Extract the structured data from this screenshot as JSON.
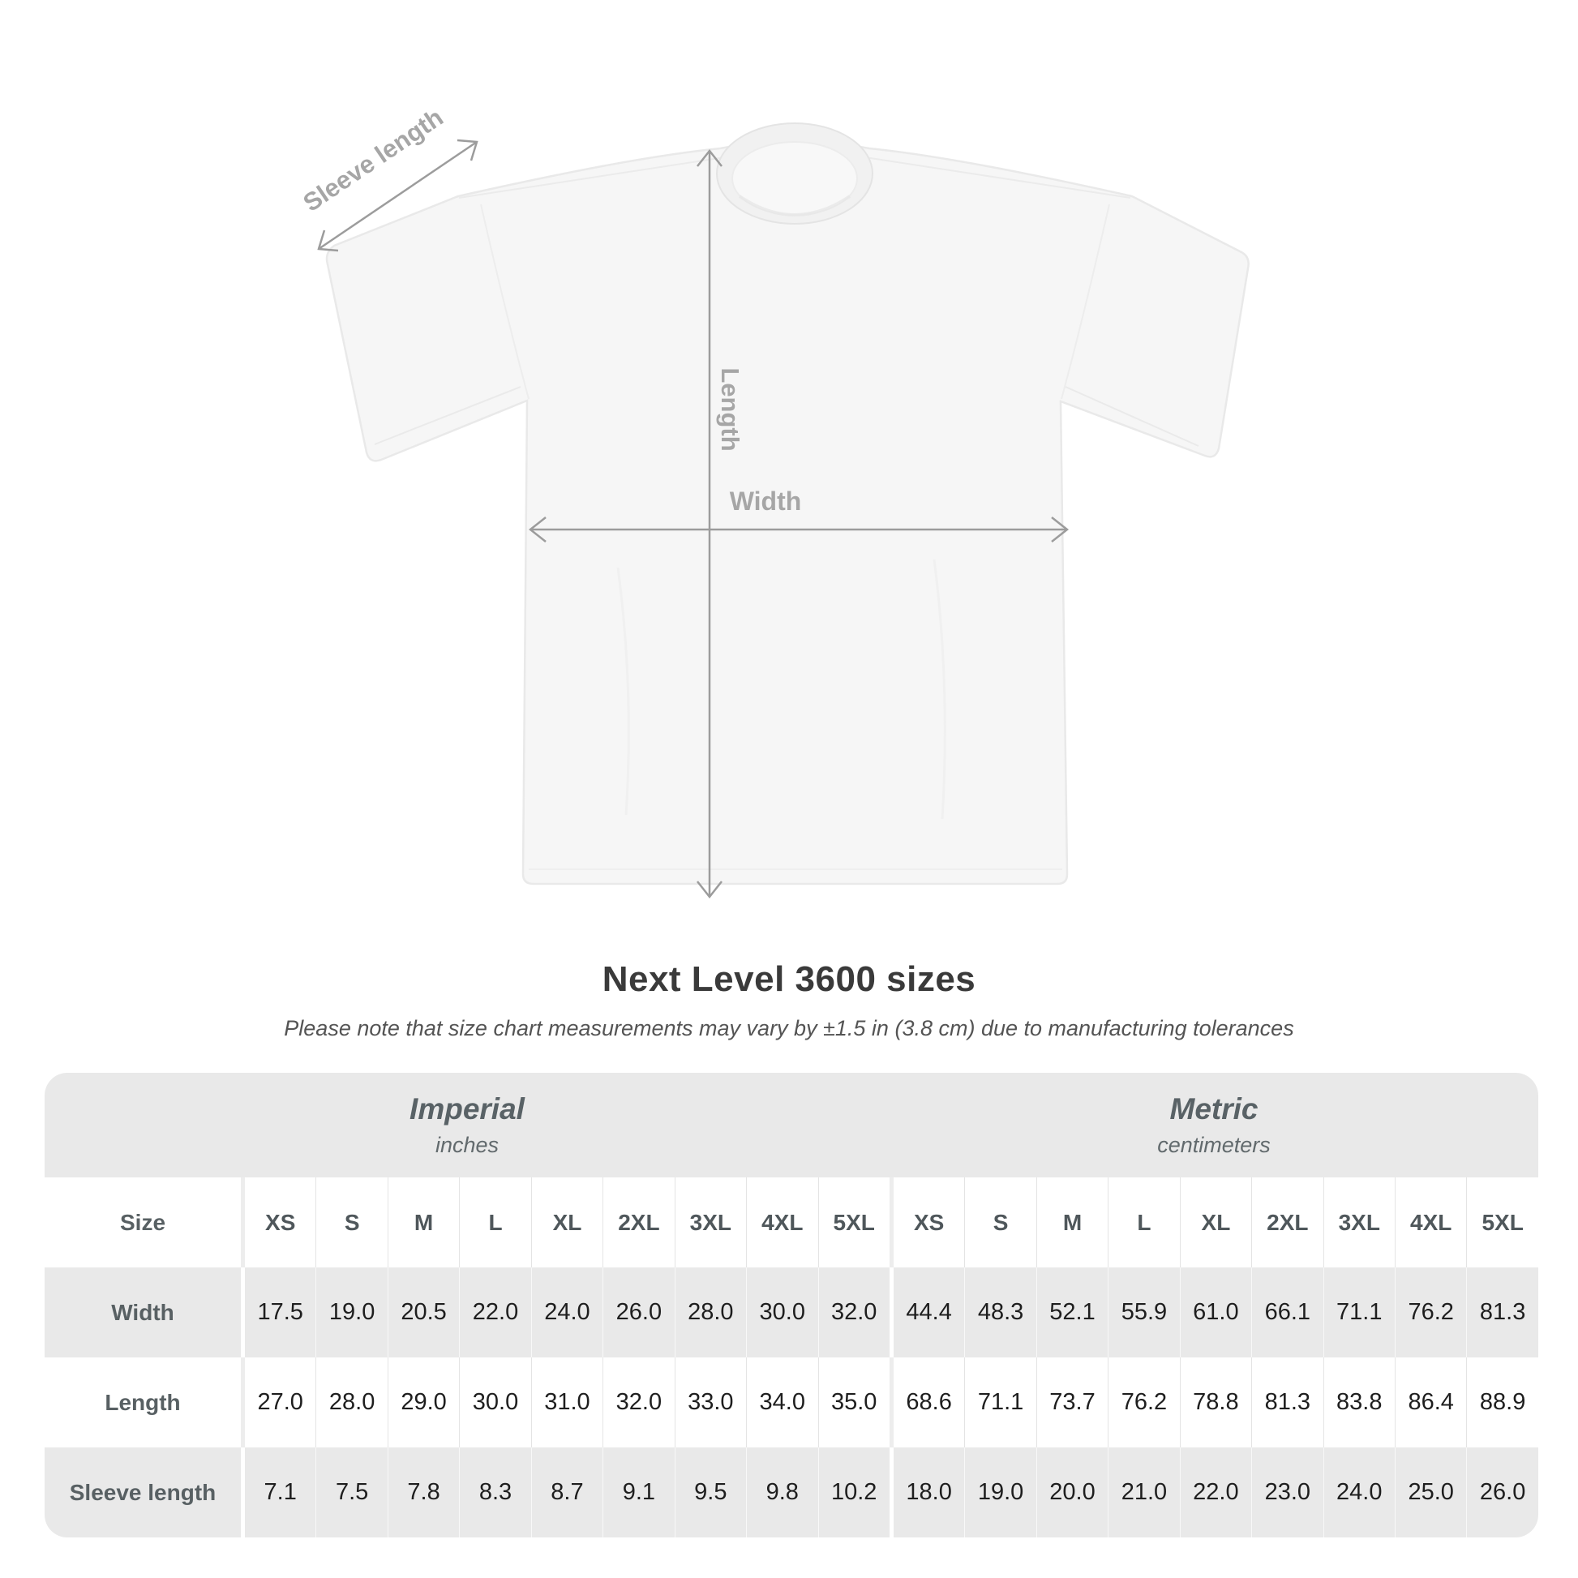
{
  "diagram": {
    "labels": {
      "sleeve_length": "Sleeve length",
      "length": "Length",
      "width": "Width"
    },
    "arrow_color": "#9c9c9c",
    "label_color": "#a6a6a6",
    "shirt_color": "#f6f6f6"
  },
  "chart_data": {
    "type": "table",
    "title": "Next Level 3600 sizes",
    "note": "Please note that size chart measurements may vary by ±1.5 in (3.8 cm) due to manufacturing tolerances",
    "size_header": "Size",
    "sizes": [
      "XS",
      "S",
      "M",
      "L",
      "XL",
      "2XL",
      "3XL",
      "4XL",
      "5XL"
    ],
    "sections": [
      {
        "name": "Imperial",
        "unit": "inches"
      },
      {
        "name": "Metric",
        "unit": "centimeters"
      }
    ],
    "rows": [
      {
        "label": "Width",
        "imperial": [
          "17.5",
          "19.0",
          "20.5",
          "22.0",
          "24.0",
          "26.0",
          "28.0",
          "30.0",
          "32.0"
        ],
        "metric": [
          "44.4",
          "48.3",
          "52.1",
          "55.9",
          "61.0",
          "66.1",
          "71.1",
          "76.2",
          "81.3"
        ]
      },
      {
        "label": "Length",
        "imperial": [
          "27.0",
          "28.0",
          "29.0",
          "30.0",
          "31.0",
          "32.0",
          "33.0",
          "34.0",
          "35.0"
        ],
        "metric": [
          "68.6",
          "71.1",
          "73.7",
          "76.2",
          "78.8",
          "81.3",
          "83.8",
          "86.4",
          "88.9"
        ]
      },
      {
        "label": "Sleeve length",
        "imperial": [
          "7.1",
          "7.5",
          "7.8",
          "8.3",
          "8.7",
          "9.1",
          "9.5",
          "9.8",
          "10.2"
        ],
        "metric": [
          "18.0",
          "19.0",
          "20.0",
          "21.0",
          "22.0",
          "23.0",
          "24.0",
          "25.0",
          "26.0"
        ]
      }
    ],
    "table_colors": {
      "band_gray": "#e9e9e9",
      "value_text": "#1e1e1e",
      "header_text": "#596266"
    }
  }
}
